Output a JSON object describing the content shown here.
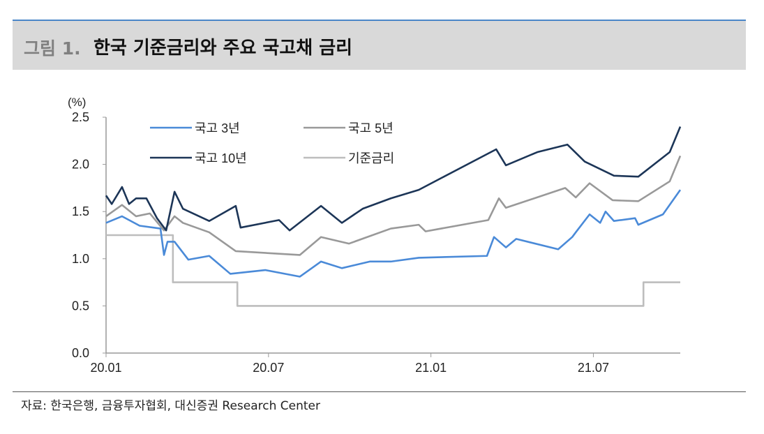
{
  "header": {
    "figure_number": "그림 1.",
    "title": "한국 기준금리와 주요 국고채 금리"
  },
  "source": "자료: 한국은행, 금융투자협회, 대신증권 Research Center",
  "chart_data": {
    "type": "line",
    "title": "한국 기준금리와 주요 국고채 금리",
    "ylabel": "(%)",
    "xlabel": "",
    "ylim": [
      0,
      2.5
    ],
    "yticks": [
      "0.0",
      "0.5",
      "1.0",
      "1.5",
      "2.0",
      "2.5"
    ],
    "x_unit": "months since 2020-01",
    "xlim": [
      0,
      21.21
    ],
    "xticks": [
      {
        "x": 0,
        "label": "20.01"
      },
      {
        "x": 6,
        "label": "20.07"
      },
      {
        "x": 12,
        "label": "21.01"
      },
      {
        "x": 18,
        "label": "21.07"
      }
    ],
    "legend_position": "top-left",
    "grid": false,
    "series": [
      {
        "name": "국고 3년",
        "color": "#4a8ad8",
        "x": [
          0,
          0.59,
          1.24,
          2.01,
          2.14,
          2.27,
          2.53,
          3.04,
          3.81,
          4.59,
          5.88,
          7.16,
          7.94,
          8.71,
          9.74,
          10.52,
          11.55,
          14.07,
          14.33,
          14.77,
          15.15,
          16.7,
          17.22,
          17.35,
          17.86,
          18.25,
          18.45,
          18.76,
          19.54,
          19.66,
          20.57,
          21.21
        ],
        "y": [
          1.38,
          1.45,
          1.35,
          1.32,
          1.04,
          1.18,
          1.18,
          0.99,
          1.03,
          0.84,
          0.88,
          0.81,
          0.97,
          0.9,
          0.97,
          0.97,
          1.01,
          1.03,
          1.23,
          1.12,
          1.21,
          1.1,
          1.23,
          1.28,
          1.47,
          1.38,
          1.5,
          1.4,
          1.43,
          1.36,
          1.47,
          1.73
        ]
      },
      {
        "name": "국고 5년",
        "color": "#999999",
        "x": [
          0,
          0.59,
          1.11,
          1.62,
          2.14,
          2.53,
          2.84,
          3.81,
          4.79,
          7.16,
          7.94,
          8.97,
          10.52,
          11.55,
          11.8,
          14.12,
          14.51,
          14.77,
          16.96,
          17.35,
          17.86,
          18.71,
          19.66,
          20.82,
          21.21
        ],
        "y": [
          1.45,
          1.57,
          1.45,
          1.48,
          1.3,
          1.45,
          1.38,
          1.28,
          1.08,
          1.04,
          1.23,
          1.16,
          1.32,
          1.36,
          1.29,
          1.41,
          1.64,
          1.54,
          1.75,
          1.65,
          1.8,
          1.62,
          1.61,
          1.82,
          2.09
        ]
      },
      {
        "name": "국고 10년",
        "color": "#1c3557",
        "x": [
          0,
          0.21,
          0.59,
          0.85,
          1.11,
          1.49,
          1.88,
          2.22,
          2.53,
          2.84,
          3.81,
          4.79,
          4.97,
          6.39,
          6.78,
          7.94,
          8.71,
          9.48,
          10.52,
          11.55,
          14.41,
          14.77,
          15.93,
          17.04,
          17.68,
          18.76,
          19.66,
          20.82,
          21.21
        ],
        "y": [
          1.67,
          1.58,
          1.76,
          1.58,
          1.64,
          1.64,
          1.43,
          1.3,
          1.71,
          1.53,
          1.4,
          1.56,
          1.33,
          1.41,
          1.3,
          1.56,
          1.38,
          1.53,
          1.64,
          1.73,
          2.16,
          1.99,
          2.13,
          2.21,
          2.03,
          1.88,
          1.87,
          2.13,
          2.4
        ]
      },
      {
        "name": "기준금리",
        "color": "#bdbdbd",
        "step": true,
        "x": [
          0,
          2.47,
          4.85,
          19.85,
          21.21
        ],
        "y": [
          1.25,
          0.75,
          0.5,
          0.75,
          0.75
        ]
      }
    ]
  }
}
